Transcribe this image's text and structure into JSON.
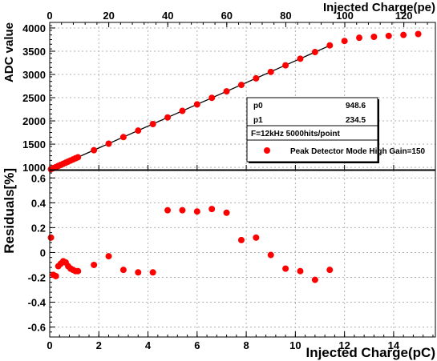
{
  "chart_data": [
    {
      "type": "scatter",
      "panel": "top",
      "title": "",
      "xlabel": "",
      "ylabel": "ADC value",
      "secondary_xlabel": "Injected Charge(pe)",
      "xlim": [
        0,
        15.7
      ],
      "ylim": [
        950,
        4120
      ],
      "secondary_xlim": [
        0,
        130.7
      ],
      "x_ticks": [
        0,
        2,
        4,
        6,
        8,
        10,
        12,
        14
      ],
      "y_ticks": [
        1000,
        1500,
        2000,
        2500,
        3000,
        3500,
        4000
      ],
      "secondary_x_ticks": [
        0,
        20,
        40,
        60,
        80,
        100,
        120
      ],
      "grid": true,
      "fit_line": {
        "p0": 948.6,
        "p1": 234.5,
        "x_range": [
          0,
          11.4
        ]
      },
      "series": [
        {
          "name": "Peak Detector Mode High Gain=150",
          "color": "#ff0000",
          "x": [
            0.05,
            0.15,
            0.25,
            0.35,
            0.45,
            0.55,
            0.65,
            0.75,
            0.85,
            0.95,
            1.05,
            1.15,
            1.8,
            2.4,
            3.0,
            3.6,
            4.2,
            4.8,
            5.4,
            6.0,
            6.6,
            7.2,
            7.8,
            8.4,
            9.0,
            9.6,
            10.2,
            10.8,
            11.4,
            12.0,
            12.6,
            13.2,
            13.8,
            14.4,
            15.0
          ],
          "y": [
            960,
            984,
            1007,
            1031,
            1054,
            1077,
            1101,
            1124,
            1148,
            1171,
            1195,
            1218,
            1369,
            1510,
            1651,
            1791,
            1932,
            2075,
            2216,
            2356,
            2497,
            2637,
            2775,
            2916,
            3055,
            3196,
            3339,
            3482,
            3625,
            3720,
            3790,
            3810,
            3830,
            3850,
            3870
          ]
        }
      ],
      "stats": {
        "p0_label": "p0",
        "p0_value": "948.6",
        "p1_label": "p1",
        "p1_value": "234.5",
        "note": "F=12kHz 5000hits/point"
      }
    },
    {
      "type": "scatter",
      "panel": "bottom",
      "title": "",
      "xlabel": "Injected Charge(pC)",
      "ylabel": "Residuals[%]",
      "xlim": [
        0,
        15.7
      ],
      "ylim": [
        -0.68,
        0.66
      ],
      "x_ticks": [
        0,
        2,
        4,
        6,
        8,
        10,
        12,
        14
      ],
      "y_ticks": [
        -0.6,
        -0.4,
        -0.2,
        0,
        0.2,
        0.4,
        0.6
      ],
      "grid": true,
      "series": [
        {
          "color": "#ff0000",
          "x": [
            0.05,
            0.15,
            0.25,
            0.35,
            0.45,
            0.55,
            0.65,
            0.75,
            0.85,
            0.95,
            1.05,
            1.15,
            1.8,
            2.4,
            3.0,
            3.6,
            4.2,
            4.8,
            5.4,
            6.0,
            6.6,
            7.2,
            7.8,
            8.4,
            9.0,
            9.6,
            10.2,
            10.8,
            11.4
          ],
          "y": [
            0.12,
            -0.18,
            -0.19,
            -0.11,
            -0.09,
            -0.07,
            -0.08,
            -0.11,
            -0.13,
            -0.14,
            -0.15,
            -0.15,
            -0.1,
            -0.03,
            -0.14,
            -0.16,
            -0.16,
            0.34,
            0.34,
            0.33,
            0.35,
            0.32,
            0.1,
            0.12,
            -0.02,
            -0.13,
            -0.15,
            -0.22,
            -0.14
          ]
        }
      ]
    }
  ]
}
